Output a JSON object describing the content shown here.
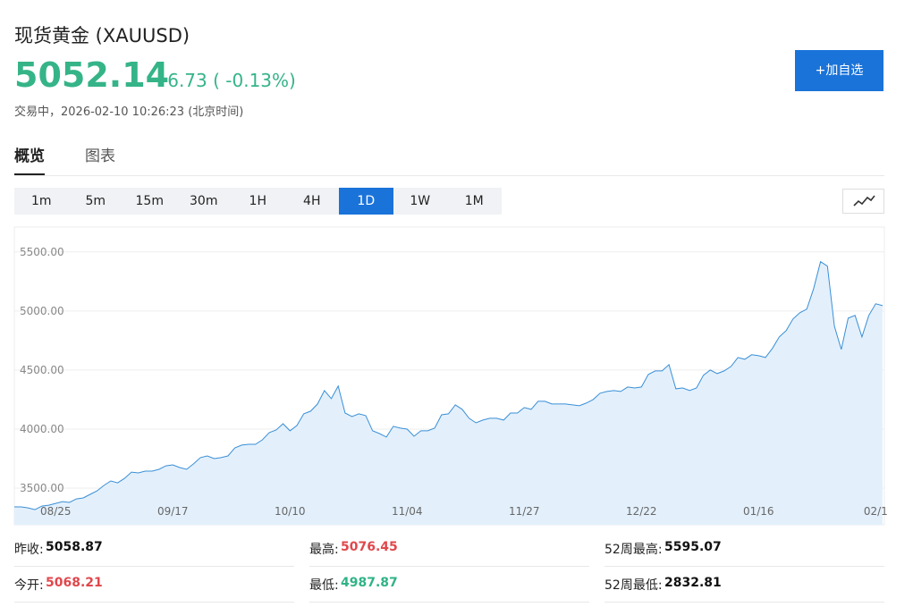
{
  "header": {
    "title": "现货黄金 (XAUUSD)",
    "price": "5052.14",
    "change": "-6.73 ( -0.13%)",
    "status": "交易中，2026-02-10 10:26:23 (北京时间)",
    "button": "+加自选"
  },
  "tabs": [
    "概览",
    "图表"
  ],
  "intervals": [
    "1m",
    "5m",
    "15m",
    "30m",
    "1H",
    "4H",
    "1D",
    "1W",
    "1M"
  ],
  "chart_data": {
    "type": "area",
    "color": "#3a8fd6",
    "fill": "#e3f0fc",
    "grid": true,
    "ylim": [
      3190,
      5710
    ],
    "yticks": [
      {
        "value": 3500,
        "label": "3500.00"
      },
      {
        "value": 4000,
        "label": "4000.00"
      },
      {
        "value": 4500,
        "label": "4500.00"
      },
      {
        "value": 5000,
        "label": "5000.00"
      },
      {
        "value": 5500,
        "label": "5500.00"
      }
    ],
    "categories": [
      null,
      null,
      null,
      null,
      null,
      null,
      "08/25",
      null,
      null,
      null,
      null,
      null,
      null,
      null,
      null,
      null,
      null,
      null,
      null,
      null,
      null,
      null,
      null,
      "09/17",
      null,
      null,
      null,
      null,
      null,
      null,
      null,
      null,
      null,
      null,
      null,
      null,
      null,
      null,
      null,
      null,
      "10/10",
      null,
      null,
      null,
      null,
      null,
      null,
      null,
      null,
      null,
      null,
      null,
      null,
      null,
      null,
      null,
      null,
      "11/04",
      null,
      null,
      null,
      null,
      null,
      null,
      null,
      null,
      null,
      null,
      null,
      null,
      null,
      null,
      null,
      null,
      "11/27",
      null,
      null,
      null,
      null,
      null,
      null,
      null,
      null,
      null,
      null,
      null,
      null,
      null,
      null,
      null,
      null,
      "12/22",
      null,
      null,
      null,
      null,
      null,
      null,
      null,
      null,
      null,
      null,
      null,
      null,
      null,
      null,
      null,
      null,
      "01/16",
      null,
      null,
      null,
      null,
      null,
      null,
      null,
      null,
      null,
      null,
      null,
      null,
      null,
      null,
      null,
      null,
      "02/1",
      null
    ],
    "values": [
      3341,
      3341,
      3333,
      3318,
      3348,
      3356,
      3371,
      3386,
      3379,
      3409,
      3417,
      3447,
      3477,
      3523,
      3561,
      3545,
      3583,
      3636,
      3629,
      3644,
      3644,
      3659,
      3689,
      3697,
      3674,
      3659,
      3705,
      3758,
      3773,
      3750,
      3758,
      3773,
      3841,
      3864,
      3871,
      3871,
      3909,
      3970,
      3992,
      4045,
      3985,
      4030,
      4129,
      4152,
      4212,
      4326,
      4258,
      4364,
      4136,
      4106,
      4129,
      4114,
      3985,
      3962,
      3932,
      4023,
      4008,
      4000,
      3939,
      3985,
      3985,
      4008,
      4121,
      4129,
      4205,
      4167,
      4091,
      4053,
      4076,
      4091,
      4091,
      4076,
      4136,
      4136,
      4182,
      4167,
      4235,
      4235,
      4212,
      4212,
      4212,
      4205,
      4197,
      4220,
      4250,
      4303,
      4318,
      4326,
      4318,
      4356,
      4348,
      4356,
      4462,
      4492,
      4492,
      4545,
      4341,
      4348,
      4326,
      4348,
      4455,
      4500,
      4470,
      4492,
      4530,
      4606,
      4591,
      4629,
      4621,
      4606,
      4682,
      4780,
      4833,
      4932,
      4985,
      5015,
      5189,
      5417,
      5379,
      4871,
      4674,
      4939,
      4962,
      4780,
      4962,
      5061,
      5045
    ]
  },
  "stats": [
    [
      {
        "label": "昨收:",
        "value": "5058.87",
        "color": "#111111"
      },
      {
        "label": "最高:",
        "value": "5076.45",
        "color": "#e0474c"
      },
      {
        "label": "52周最高:",
        "value": "5595.07",
        "color": "#111111"
      }
    ],
    [
      {
        "label": "今开:",
        "value": "5068.21",
        "color": "#e0474c"
      },
      {
        "label": "最低:",
        "value": "4987.87",
        "color": "#2fb385"
      },
      {
        "label": "52周最低:",
        "value": "2832.81",
        "color": "#111111"
      }
    ]
  ]
}
